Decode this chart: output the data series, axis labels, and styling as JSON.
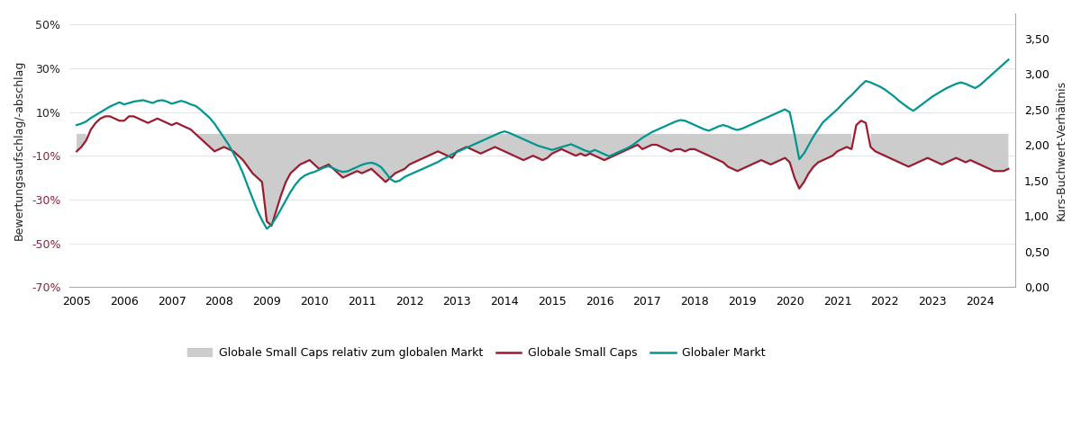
{
  "ylabel_left": "Bewertungsaufschlag/-abschlag",
  "ylabel_right": "Kurs-Buchwert-Verhältnis",
  "ylim_left": [
    -0.7,
    0.55
  ],
  "ylim_right": [
    0.0,
    3.85
  ],
  "yticks_left": [
    0.5,
    0.3,
    0.1,
    -0.1,
    -0.3,
    -0.5,
    -0.7
  ],
  "ytick_labels_left": [
    "50%",
    "30%",
    "10%",
    "-10%",
    "-30%",
    "-50%",
    "-70%"
  ],
  "yticks_right": [
    3.5,
    3.0,
    2.5,
    2.0,
    1.5,
    1.0,
    0.5,
    0.0
  ],
  "ytick_labels_right": [
    "3,50",
    "3,00",
    "2,50",
    "2,00",
    "1,50",
    "1,00",
    "0,50",
    "0,00"
  ],
  "xticks": [
    2005,
    2006,
    2007,
    2008,
    2009,
    2010,
    2011,
    2012,
    2013,
    2014,
    2015,
    2016,
    2017,
    2018,
    2019,
    2020,
    2021,
    2022,
    2023,
    2024
  ],
  "color_small_caps": "#9B1B30",
  "color_market": "#00968F",
  "color_fill": "#CCCCCC",
  "legend_labels": [
    "Globale Small Caps relativ zum globalen Markt",
    "Globale Small Caps",
    "Globaler Markt"
  ],
  "background_color": "#FFFFFF",
  "small_caps_data": {
    "years": [
      2005.0,
      2005.1,
      2005.2,
      2005.3,
      2005.4,
      2005.5,
      2005.6,
      2005.7,
      2005.8,
      2005.9,
      2006.0,
      2006.1,
      2006.2,
      2006.3,
      2006.4,
      2006.5,
      2006.6,
      2006.7,
      2006.8,
      2006.9,
      2007.0,
      2007.1,
      2007.2,
      2007.3,
      2007.4,
      2007.5,
      2007.6,
      2007.7,
      2007.8,
      2007.9,
      2008.0,
      2008.1,
      2008.2,
      2008.3,
      2008.4,
      2008.5,
      2008.6,
      2008.7,
      2008.8,
      2008.9,
      2009.0,
      2009.1,
      2009.2,
      2009.3,
      2009.4,
      2009.5,
      2009.6,
      2009.7,
      2009.8,
      2009.9,
      2010.0,
      2010.1,
      2010.2,
      2010.3,
      2010.4,
      2010.5,
      2010.6,
      2010.7,
      2010.8,
      2010.9,
      2011.0,
      2011.1,
      2011.2,
      2011.3,
      2011.4,
      2011.5,
      2011.6,
      2011.7,
      2011.8,
      2011.9,
      2012.0,
      2012.1,
      2012.2,
      2012.3,
      2012.4,
      2012.5,
      2012.6,
      2012.7,
      2012.8,
      2012.9,
      2013.0,
      2013.1,
      2013.2,
      2013.3,
      2013.4,
      2013.5,
      2013.6,
      2013.7,
      2013.8,
      2013.9,
      2014.0,
      2014.1,
      2014.2,
      2014.3,
      2014.4,
      2014.5,
      2014.6,
      2014.7,
      2014.8,
      2014.9,
      2015.0,
      2015.1,
      2015.2,
      2015.3,
      2015.4,
      2015.5,
      2015.6,
      2015.7,
      2015.8,
      2015.9,
      2016.0,
      2016.1,
      2016.2,
      2016.3,
      2016.4,
      2016.5,
      2016.6,
      2016.7,
      2016.8,
      2016.9,
      2017.0,
      2017.1,
      2017.2,
      2017.3,
      2017.4,
      2017.5,
      2017.6,
      2017.7,
      2017.8,
      2017.9,
      2018.0,
      2018.1,
      2018.2,
      2018.3,
      2018.4,
      2018.5,
      2018.6,
      2018.7,
      2018.8,
      2018.9,
      2019.0,
      2019.1,
      2019.2,
      2019.3,
      2019.4,
      2019.5,
      2019.6,
      2019.7,
      2019.8,
      2019.9,
      2020.0,
      2020.1,
      2020.2,
      2020.3,
      2020.4,
      2020.5,
      2020.6,
      2020.7,
      2020.8,
      2020.9,
      2021.0,
      2021.1,
      2021.2,
      2021.3,
      2021.4,
      2021.5,
      2021.6,
      2021.7,
      2021.8,
      2021.9,
      2022.0,
      2022.1,
      2022.2,
      2022.3,
      2022.4,
      2022.5,
      2022.6,
      2022.7,
      2022.8,
      2022.9,
      2023.0,
      2023.1,
      2023.2,
      2023.3,
      2023.4,
      2023.5,
      2023.6,
      2023.7,
      2023.8,
      2023.9,
      2024.0,
      2024.1,
      2024.2,
      2024.3,
      2024.4,
      2024.5,
      2024.6
    ],
    "values": [
      -0.08,
      -0.06,
      -0.03,
      0.02,
      0.05,
      0.07,
      0.08,
      0.08,
      0.07,
      0.06,
      0.06,
      0.08,
      0.08,
      0.07,
      0.06,
      0.05,
      0.06,
      0.07,
      0.06,
      0.05,
      0.04,
      0.05,
      0.04,
      0.03,
      0.02,
      0.0,
      -0.02,
      -0.04,
      -0.06,
      -0.08,
      -0.07,
      -0.06,
      -0.07,
      -0.08,
      -0.1,
      -0.12,
      -0.15,
      -0.18,
      -0.2,
      -0.22,
      -0.4,
      -0.42,
      -0.35,
      -0.28,
      -0.22,
      -0.18,
      -0.16,
      -0.14,
      -0.13,
      -0.12,
      -0.14,
      -0.16,
      -0.15,
      -0.14,
      -0.16,
      -0.18,
      -0.2,
      -0.19,
      -0.18,
      -0.17,
      -0.18,
      -0.17,
      -0.16,
      -0.18,
      -0.2,
      -0.22,
      -0.2,
      -0.18,
      -0.17,
      -0.16,
      -0.14,
      -0.13,
      -0.12,
      -0.11,
      -0.1,
      -0.09,
      -0.08,
      -0.09,
      -0.1,
      -0.11,
      -0.08,
      -0.07,
      -0.06,
      -0.07,
      -0.08,
      -0.09,
      -0.08,
      -0.07,
      -0.06,
      -0.07,
      -0.08,
      -0.09,
      -0.1,
      -0.11,
      -0.12,
      -0.11,
      -0.1,
      -0.11,
      -0.12,
      -0.11,
      -0.09,
      -0.08,
      -0.07,
      -0.08,
      -0.09,
      -0.1,
      -0.09,
      -0.1,
      -0.09,
      -0.1,
      -0.11,
      -0.12,
      -0.11,
      -0.1,
      -0.09,
      -0.08,
      -0.07,
      -0.06,
      -0.05,
      -0.07,
      -0.06,
      -0.05,
      -0.05,
      -0.06,
      -0.07,
      -0.08,
      -0.07,
      -0.07,
      -0.08,
      -0.07,
      -0.07,
      -0.08,
      -0.09,
      -0.1,
      -0.11,
      -0.12,
      -0.13,
      -0.15,
      -0.16,
      -0.17,
      -0.16,
      -0.15,
      -0.14,
      -0.13,
      -0.12,
      -0.13,
      -0.14,
      -0.13,
      -0.12,
      -0.11,
      -0.13,
      -0.2,
      -0.25,
      -0.22,
      -0.18,
      -0.15,
      -0.13,
      -0.12,
      -0.11,
      -0.1,
      -0.08,
      -0.07,
      -0.06,
      -0.07,
      0.04,
      0.06,
      0.05,
      -0.06,
      -0.08,
      -0.09,
      -0.1,
      -0.11,
      -0.12,
      -0.13,
      -0.14,
      -0.15,
      -0.14,
      -0.13,
      -0.12,
      -0.11,
      -0.12,
      -0.13,
      -0.14,
      -0.13,
      -0.12,
      -0.11,
      -0.12,
      -0.13,
      -0.12,
      -0.13,
      -0.14,
      -0.15,
      -0.16,
      -0.17,
      -0.17,
      -0.17,
      -0.16
    ]
  },
  "market_data": {
    "years": [
      2005.0,
      2005.1,
      2005.2,
      2005.3,
      2005.4,
      2005.5,
      2005.6,
      2005.7,
      2005.8,
      2005.9,
      2006.0,
      2006.1,
      2006.2,
      2006.3,
      2006.4,
      2006.5,
      2006.6,
      2006.7,
      2006.8,
      2006.9,
      2007.0,
      2007.1,
      2007.2,
      2007.3,
      2007.4,
      2007.5,
      2007.6,
      2007.7,
      2007.8,
      2007.9,
      2008.0,
      2008.1,
      2008.2,
      2008.3,
      2008.4,
      2008.5,
      2008.6,
      2008.7,
      2008.8,
      2008.9,
      2009.0,
      2009.1,
      2009.2,
      2009.3,
      2009.4,
      2009.5,
      2009.6,
      2009.7,
      2009.8,
      2009.9,
      2010.0,
      2010.1,
      2010.2,
      2010.3,
      2010.4,
      2010.5,
      2010.6,
      2010.7,
      2010.8,
      2010.9,
      2011.0,
      2011.1,
      2011.2,
      2011.3,
      2011.4,
      2011.5,
      2011.6,
      2011.7,
      2011.8,
      2011.9,
      2012.0,
      2012.1,
      2012.2,
      2012.3,
      2012.4,
      2012.5,
      2012.6,
      2012.7,
      2012.8,
      2012.9,
      2013.0,
      2013.1,
      2013.2,
      2013.3,
      2013.4,
      2013.5,
      2013.6,
      2013.7,
      2013.8,
      2013.9,
      2014.0,
      2014.1,
      2014.2,
      2014.3,
      2014.4,
      2014.5,
      2014.6,
      2014.7,
      2014.8,
      2014.9,
      2015.0,
      2015.1,
      2015.2,
      2015.3,
      2015.4,
      2015.5,
      2015.6,
      2015.7,
      2015.8,
      2015.9,
      2016.0,
      2016.1,
      2016.2,
      2016.3,
      2016.4,
      2016.5,
      2016.6,
      2016.7,
      2016.8,
      2016.9,
      2017.0,
      2017.1,
      2017.2,
      2017.3,
      2017.4,
      2017.5,
      2017.6,
      2017.7,
      2017.8,
      2017.9,
      2018.0,
      2018.1,
      2018.2,
      2018.3,
      2018.4,
      2018.5,
      2018.6,
      2018.7,
      2018.8,
      2018.9,
      2019.0,
      2019.1,
      2019.2,
      2019.3,
      2019.4,
      2019.5,
      2019.6,
      2019.7,
      2019.8,
      2019.9,
      2020.0,
      2020.1,
      2020.2,
      2020.3,
      2020.4,
      2020.5,
      2020.6,
      2020.7,
      2020.8,
      2020.9,
      2021.0,
      2021.1,
      2021.2,
      2021.3,
      2021.4,
      2021.5,
      2021.6,
      2021.7,
      2021.8,
      2021.9,
      2022.0,
      2022.1,
      2022.2,
      2022.3,
      2022.4,
      2022.5,
      2022.6,
      2022.7,
      2022.8,
      2022.9,
      2023.0,
      2023.1,
      2023.2,
      2023.3,
      2023.4,
      2023.5,
      2023.6,
      2023.7,
      2023.8,
      2023.9,
      2024.0,
      2024.1,
      2024.2,
      2024.3,
      2024.4,
      2024.5,
      2024.6
    ],
    "values": [
      2.28,
      2.3,
      2.33,
      2.38,
      2.42,
      2.46,
      2.5,
      2.54,
      2.57,
      2.6,
      2.57,
      2.59,
      2.61,
      2.62,
      2.63,
      2.61,
      2.59,
      2.62,
      2.63,
      2.61,
      2.58,
      2.6,
      2.62,
      2.6,
      2.57,
      2.55,
      2.5,
      2.44,
      2.38,
      2.3,
      2.2,
      2.1,
      2.0,
      1.88,
      1.75,
      1.6,
      1.42,
      1.25,
      1.08,
      0.94,
      0.82,
      0.88,
      0.98,
      1.1,
      1.22,
      1.34,
      1.44,
      1.52,
      1.57,
      1.6,
      1.62,
      1.65,
      1.68,
      1.7,
      1.67,
      1.64,
      1.62,
      1.63,
      1.66,
      1.69,
      1.72,
      1.74,
      1.75,
      1.73,
      1.69,
      1.61,
      1.52,
      1.48,
      1.5,
      1.55,
      1.58,
      1.61,
      1.64,
      1.67,
      1.7,
      1.73,
      1.76,
      1.8,
      1.83,
      1.87,
      1.9,
      1.93,
      1.96,
      1.99,
      2.02,
      2.05,
      2.08,
      2.11,
      2.14,
      2.17,
      2.19,
      2.17,
      2.14,
      2.11,
      2.08,
      2.05,
      2.02,
      1.99,
      1.97,
      1.95,
      1.93,
      1.95,
      1.97,
      1.99,
      2.01,
      1.98,
      1.95,
      1.92,
      1.9,
      1.93,
      1.9,
      1.87,
      1.84,
      1.87,
      1.9,
      1.93,
      1.96,
      2.0,
      2.05,
      2.1,
      2.14,
      2.18,
      2.21,
      2.24,
      2.27,
      2.3,
      2.33,
      2.35,
      2.34,
      2.31,
      2.28,
      2.25,
      2.22,
      2.2,
      2.23,
      2.26,
      2.28,
      2.26,
      2.23,
      2.21,
      2.23,
      2.26,
      2.29,
      2.32,
      2.35,
      2.38,
      2.41,
      2.44,
      2.47,
      2.5,
      2.46,
      2.15,
      1.8,
      1.88,
      2.0,
      2.12,
      2.22,
      2.32,
      2.38,
      2.44,
      2.5,
      2.57,
      2.64,
      2.7,
      2.77,
      2.84,
      2.9,
      2.88,
      2.85,
      2.82,
      2.78,
      2.73,
      2.68,
      2.62,
      2.57,
      2.52,
      2.48,
      2.53,
      2.58,
      2.63,
      2.68,
      2.72,
      2.76,
      2.8,
      2.83,
      2.86,
      2.88,
      2.86,
      2.83,
      2.8,
      2.84,
      2.9,
      2.96,
      3.02,
      3.08,
      3.14,
      3.2
    ]
  }
}
